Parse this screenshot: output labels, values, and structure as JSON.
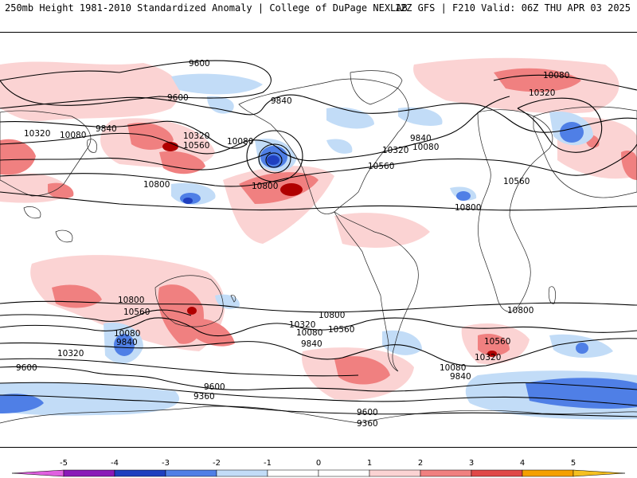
{
  "header": {
    "title": "250mb Height 1981-2010 Standardized Anomaly | College of DuPage NEXLAB",
    "run_info": "12Z GFS | F210 Valid: 06Z THU APR 03 2025"
  },
  "contour_labels": [
    "9600",
    "9840",
    "10080",
    "10320",
    "10560",
    "10800",
    "9360"
  ],
  "colors": {
    "neg5": "#e060e0",
    "neg4": "#8a1ab8",
    "neg3": "#1f3fbf",
    "neg2": "#4f7fe6",
    "neg1": "#c2dcf7",
    "zero": "#ffffff",
    "pos1": "#fbd3d3",
    "pos2": "#f08080",
    "pos3": "#e04848",
    "pos4": "#b00000",
    "pos5": "#f5a000"
  },
  "colorbar": {
    "ticks": [
      "-5",
      "-4",
      "-3",
      "-2",
      "-1",
      "0",
      "1",
      "2",
      "3",
      "4",
      "5"
    ]
  }
}
